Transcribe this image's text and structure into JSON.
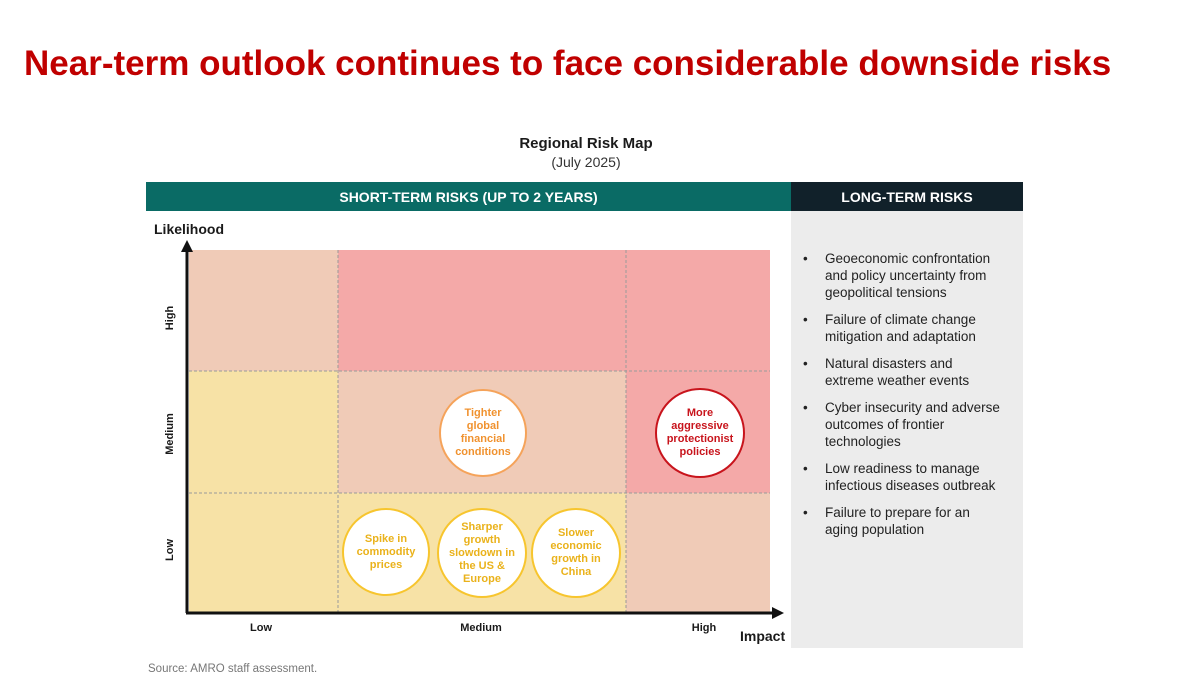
{
  "title": "Near-term outlook continues to face considerable downside risks",
  "map_title": "Regional Risk Map",
  "map_subtitle": "(July 2025)",
  "short_term_header": "SHORT-TERM RISKS (UP TO 2 YEARS)",
  "long_term_header": "LONG-TERM RISKS",
  "axis": {
    "y_label": "Likelihood",
    "x_label": "Impact",
    "y_ticks": [
      "Low",
      "Medium",
      "High"
    ],
    "x_ticks": [
      "Low",
      "Medium",
      "High"
    ]
  },
  "colors": {
    "high_risk": "#f4a9a8",
    "medium_risk": "#f0cbb7",
    "low_risk": "#f7e2a6",
    "header_short": "#0a6b65",
    "header_long": "#11212a",
    "title": "#c00000"
  },
  "grid": [
    [
      "medium_risk",
      "high_risk",
      "high_risk"
    ],
    [
      "low_risk",
      "medium_risk",
      "high_risk"
    ],
    [
      "low_risk",
      "low_risk",
      "medium_risk"
    ]
  ],
  "risks": [
    {
      "label": "Tighter global financial conditions",
      "likelihood": "Medium",
      "impact": "Medium",
      "style": "orange"
    },
    {
      "label": "More aggressive protectionist policies",
      "likelihood": "Medium",
      "impact": "High",
      "style": "red"
    },
    {
      "label": "Spike in commodity prices",
      "likelihood": "Low",
      "impact": "Medium",
      "style": "yellow"
    },
    {
      "label": "Sharper growth slowdown in the US & Europe",
      "likelihood": "Low",
      "impact": "Medium",
      "style": "yellow"
    },
    {
      "label": "Slower economic growth in China",
      "likelihood": "Low",
      "impact": "Medium",
      "style": "yellow"
    }
  ],
  "long_term_risks": [
    "Geoeconomic confrontation and policy uncertainty from geopolitical tensions",
    "Failure of climate change mitigation and adaptation",
    "Natural disasters and extreme weather events",
    "Cyber insecurity and adverse outcomes of frontier technologies",
    "Low readiness to manage infectious diseases outbreak",
    "Failure to prepare for an aging population"
  ],
  "source": "Source: AMRO staff assessment."
}
